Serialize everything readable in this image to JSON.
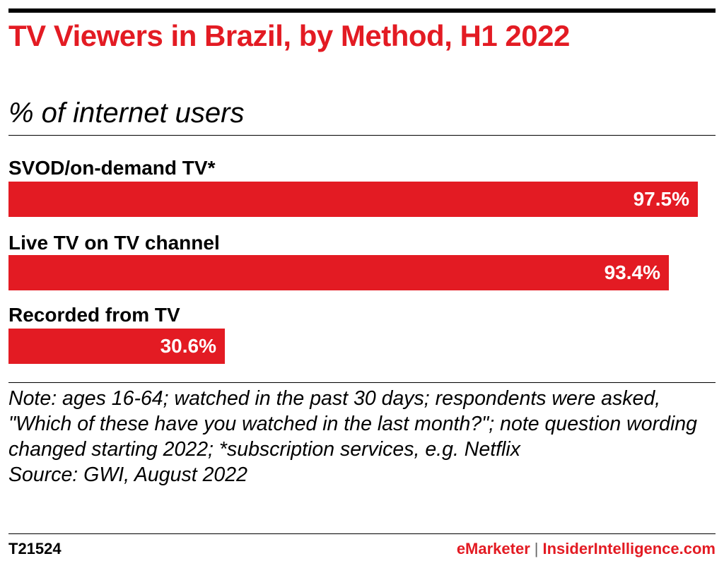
{
  "chart_data": {
    "type": "bar",
    "orientation": "horizontal",
    "title": "TV Viewers in Brazil, by Method, H1 2022",
    "subtitle": "% of internet users",
    "categories": [
      "SVOD/on-demand TV*",
      "Live TV on TV channel",
      "Recorded from TV"
    ],
    "values": [
      97.5,
      93.4,
      30.6
    ],
    "value_labels": [
      "97.5%",
      "93.4%",
      "30.6%"
    ],
    "xlim": [
      0,
      100
    ],
    "grid": false,
    "bar_color": "#e31b23"
  },
  "note": {
    "prefix": "Note:",
    "text": " ages 16-64; watched in the past 30 days; respondents were asked, \"Which of these have you watched in the last month?\"; note question wording changed starting 2022; *subscription services, e.g. Netflix"
  },
  "source": {
    "prefix": "Source:",
    "text": " GWI, August 2022"
  },
  "footer": {
    "chart_id": "T21524",
    "brand_left": "eMarketer",
    "separator": "|",
    "brand_right": "InsiderIntelligence.com"
  },
  "colors": {
    "accent": "#e31b23",
    "text": "#000000"
  }
}
